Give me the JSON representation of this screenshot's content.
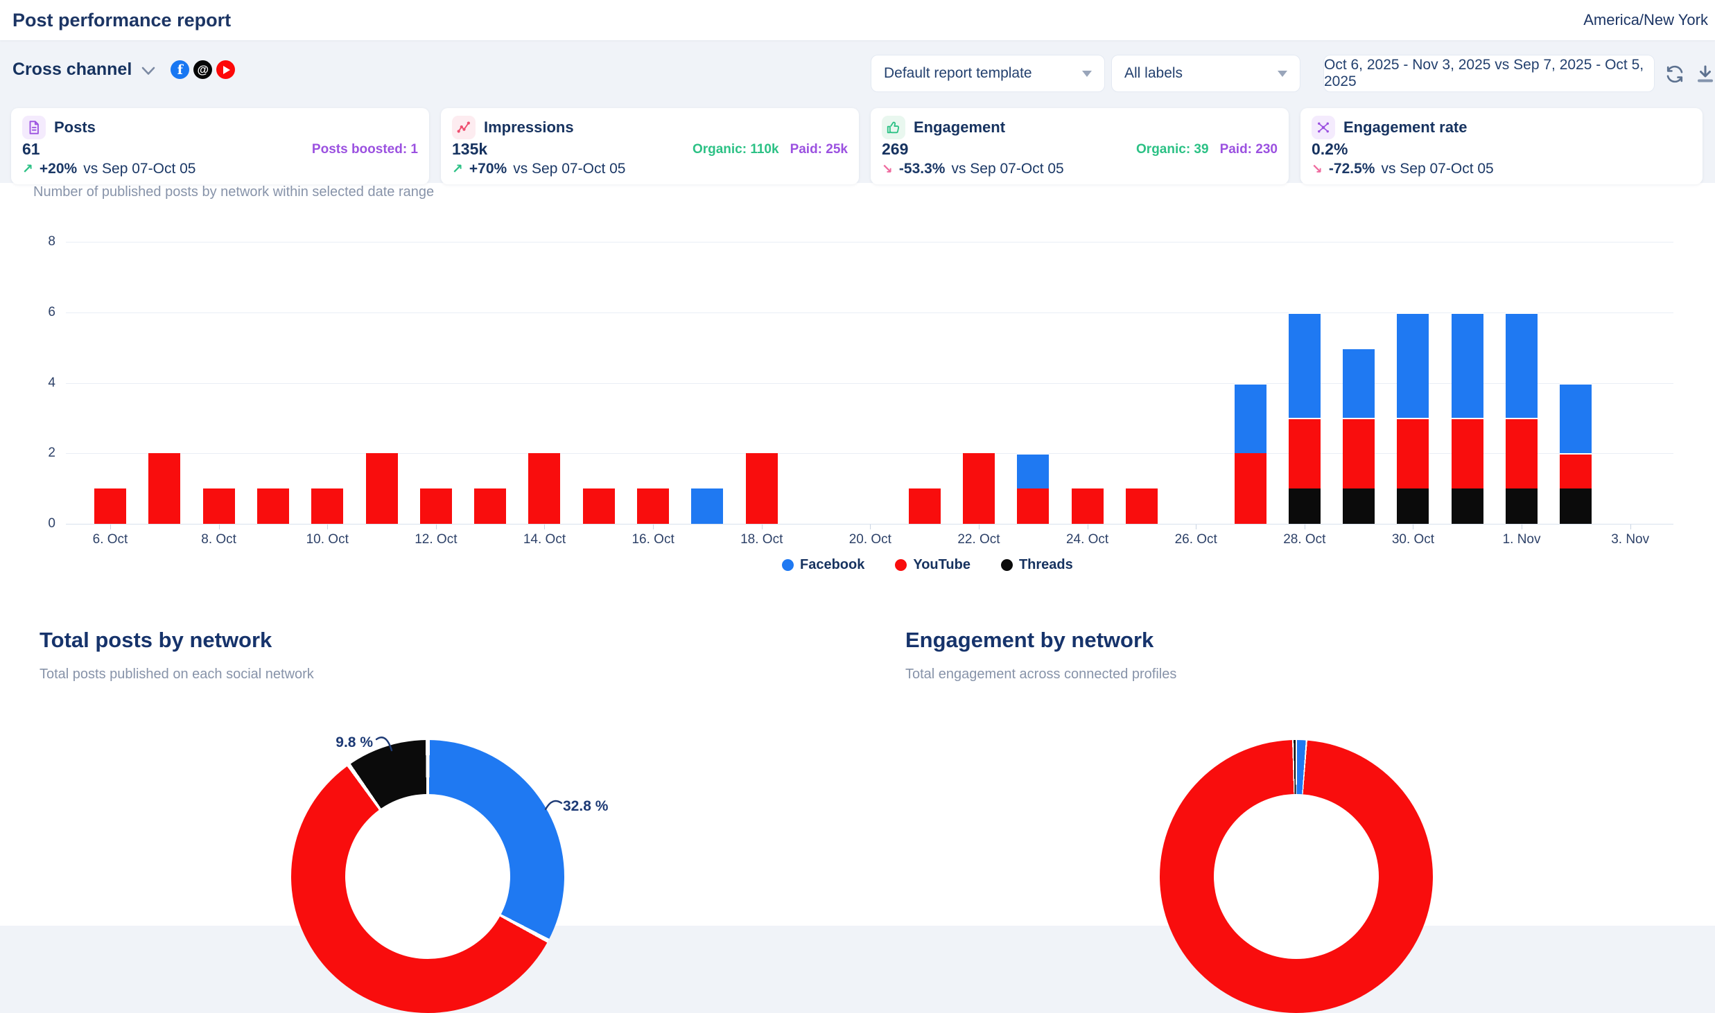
{
  "header": {
    "title": "Post performance report",
    "timezone": "America/New York"
  },
  "toolbar": {
    "channel_selector": {
      "label": "Cross channel",
      "networks": [
        {
          "name": "facebook",
          "color": "#1877f2"
        },
        {
          "name": "threads",
          "color": "#060606"
        },
        {
          "name": "youtube",
          "color": "#fd0808"
        }
      ]
    },
    "template_dropdown": {
      "value": "Default report template"
    },
    "labels_dropdown": {
      "value": "All labels"
    },
    "date_range": {
      "value": "Oct 6, 2025 - Nov 3, 2025 vs Sep 7, 2025 - Oct 5, 2025"
    },
    "actions": [
      "refresh-icon",
      "download-icon"
    ]
  },
  "kpis": [
    {
      "slug": "posts",
      "title": "Posts",
      "value": "61",
      "icon": "document-icon",
      "accent": "#9b51e0",
      "accent_bg": "#f4ebfd",
      "side_metrics": [
        {
          "text": "Posts boosted: 1",
          "color": "#9b51e0"
        }
      ],
      "trend": "up",
      "trend_color": "#2cc185",
      "delta": "+20%",
      "compare": "vs Sep 07-Oct 05"
    },
    {
      "slug": "impressions",
      "title": "Impressions",
      "value": "135k",
      "icon": "pulse-icon",
      "accent": "#ee4d6e",
      "accent_bg": "#fdecf0",
      "side_metrics": [
        {
          "text": "Organic: 110k",
          "color": "#2cc185"
        },
        {
          "text": "Paid: 25k",
          "color": "#9b51e0"
        }
      ],
      "trend": "up",
      "trend_color": "#2cc185",
      "delta": "+70%",
      "compare": "vs Sep 07-Oct 05"
    },
    {
      "slug": "engagement",
      "title": "Engagement",
      "value": "269",
      "icon": "thumbs-up-icon",
      "accent": "#2cc185",
      "accent_bg": "#e9f7ef",
      "side_metrics": [
        {
          "text": "Organic: 39",
          "color": "#2cc185"
        },
        {
          "text": "Paid: 230",
          "color": "#9b51e0"
        }
      ],
      "trend": "down",
      "trend_color": "#ef6a9e",
      "delta": "-53.3%",
      "compare": "vs Sep 07-Oct 05"
    },
    {
      "slug": "engagement-rate",
      "title": "Engagement rate",
      "value": "0.2%",
      "icon": "network-icon",
      "accent": "#9b51e0",
      "accent_bg": "#f4ebfd",
      "side_metrics": [],
      "trend": "down",
      "trend_color": "#ef6a9e",
      "delta": "-72.5%",
      "compare": "vs Sep 07-Oct 05"
    }
  ],
  "sections": {
    "posts_by_day": {
      "subtitle": "Number of published posts by network within selected date range"
    },
    "total_posts": {
      "title": "Total posts by network",
      "subtitle": "Total posts published on each social network"
    },
    "engagement": {
      "title": "Engagement by network",
      "subtitle": "Total engagement across connected profiles"
    }
  },
  "chart_data": [
    {
      "type": "bar",
      "stacked": true,
      "title": "Number of published posts by network within selected date range",
      "categories": [
        "6. Oct",
        "7. Oct",
        "8. Oct",
        "9. Oct",
        "10. Oct",
        "11. Oct",
        "12. Oct",
        "13. Oct",
        "14. Oct",
        "15. Oct",
        "16. Oct",
        "17. Oct",
        "18. Oct",
        "19. Oct",
        "20. Oct",
        "21. Oct",
        "22. Oct",
        "23. Oct",
        "24. Oct",
        "25. Oct",
        "26. Oct",
        "27. Oct",
        "28. Oct",
        "29. Oct",
        "30. Oct",
        "31. Oct",
        "1. Nov",
        "2. Nov",
        "3. Nov"
      ],
      "tick_labels": [
        "6. Oct",
        "8. Oct",
        "10. Oct",
        "12. Oct",
        "14. Oct",
        "16. Oct",
        "18. Oct",
        "20. Oct",
        "22. Oct",
        "24. Oct",
        "26. Oct",
        "28. Oct",
        "30. Oct",
        "1. Nov",
        "3. Nov"
      ],
      "tick_day_indices": [
        0,
        2,
        4,
        6,
        8,
        10,
        12,
        14,
        16,
        18,
        20,
        22,
        24,
        26,
        28
      ],
      "series": [
        {
          "name": "Facebook",
          "color": "#1f79f2",
          "values": [
            0,
            0,
            0,
            0,
            0,
            0,
            0,
            0,
            0,
            0,
            0,
            1,
            0,
            0,
            0,
            0,
            0,
            1,
            0,
            0,
            0,
            2,
            3,
            2,
            3,
            3,
            3,
            2,
            0
          ]
        },
        {
          "name": "YouTube",
          "color": "#f90d0d",
          "values": [
            1,
            2,
            1,
            1,
            1,
            2,
            1,
            1,
            2,
            1,
            1,
            0,
            2,
            0,
            0,
            1,
            2,
            1,
            1,
            1,
            0,
            2,
            2,
            2,
            2,
            2,
            2,
            1,
            0
          ]
        },
        {
          "name": "Threads",
          "color": "#0b0b0b",
          "values": [
            0,
            0,
            0,
            0,
            0,
            0,
            0,
            0,
            0,
            0,
            0,
            0,
            0,
            0,
            0,
            0,
            0,
            0,
            0,
            0,
            0,
            0,
            1,
            1,
            1,
            1,
            1,
            1,
            0
          ]
        }
      ],
      "stack_order_bottom_to_top": [
        "Threads",
        "YouTube",
        "Facebook"
      ],
      "legend": [
        "Facebook",
        "YouTube",
        "Threads"
      ],
      "legend_position": "bottom",
      "ylim": [
        0,
        8
      ],
      "yticks": [
        0,
        2,
        4,
        6,
        8
      ],
      "grid": true
    },
    {
      "type": "pie",
      "donut": true,
      "title": "Total posts by network",
      "slices": [
        {
          "label": "Facebook",
          "pct": 32.8,
          "color": "#1f79f2"
        },
        {
          "label": "YouTube",
          "pct": 57.4,
          "color": "#f90d0d"
        },
        {
          "label": "Threads",
          "pct": 9.8,
          "color": "#0b0b0b"
        }
      ],
      "visible_labels": [
        {
          "text": "32.8 %",
          "slice": "Facebook"
        },
        {
          "text": "9.8 %",
          "slice": "Threads"
        }
      ]
    },
    {
      "type": "pie",
      "donut": true,
      "title": "Engagement by network",
      "slices": [
        {
          "label": "Facebook",
          "pct": 1.2,
          "color": "#1f79f2"
        },
        {
          "label": "YouTube",
          "pct": 98.4,
          "color": "#f90d0d"
        },
        {
          "label": "Threads",
          "pct": 0.4,
          "color": "#0b0b0b"
        }
      ],
      "visible_labels": []
    }
  ]
}
